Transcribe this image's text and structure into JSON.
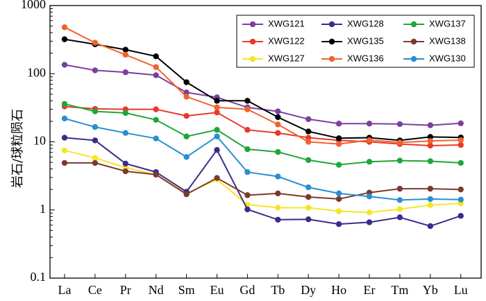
{
  "chart_data": {
    "type": "line",
    "yscale": "log",
    "ylim": [
      0.1,
      1000
    ],
    "ylabel": "岩石/球粒陨石",
    "xlabel": "",
    "categories": [
      "La",
      "Ce",
      "Pr",
      "Nd",
      "Sm",
      "Eu",
      "Gd",
      "Tb",
      "Dy",
      "Ho",
      "Er",
      "Tm",
      "Yb",
      "Lu"
    ],
    "yticks": [
      "0.1",
      "1",
      "10",
      "100",
      "1000"
    ],
    "legend_position": "top-right",
    "series": [
      {
        "name": "XWG121",
        "color": "#7B3F9E",
        "values": [
          135,
          112,
          105,
          95,
          53,
          45,
          32,
          28,
          21.5,
          18.5,
          18.5,
          18.2,
          17.5,
          18.7
        ]
      },
      {
        "name": "XWG122",
        "color": "#E8392B",
        "values": [
          33,
          30.5,
          30,
          30,
          24,
          27,
          15,
          13.5,
          11.5,
          10.5,
          10,
          9.3,
          8.8,
          9
        ]
      },
      {
        "name": "XWG127",
        "color": "#F5E52A",
        "values": [
          7.5,
          5.8,
          4.2,
          3.3,
          1.75,
          2.8,
          1.2,
          1.08,
          1.08,
          0.96,
          0.92,
          1.03,
          1.18,
          1.25
        ]
      },
      {
        "name": "XWG128",
        "color": "#3D2A8C",
        "values": [
          11.5,
          10.5,
          4.8,
          3.6,
          1.85,
          7.6,
          1.02,
          0.72,
          0.73,
          0.62,
          0.66,
          0.78,
          0.58,
          0.82
        ]
      },
      {
        "name": "XWG135",
        "color": "#000000",
        "values": [
          320,
          270,
          225,
          180,
          75,
          40,
          40,
          23,
          14.2,
          11.3,
          11.5,
          10.5,
          11.8,
          11.6
        ]
      },
      {
        "name": "XWG136",
        "color": "#F2622E",
        "values": [
          480,
          285,
          190,
          125,
          46,
          32,
          30,
          18,
          10,
          9.3,
          10.6,
          9.8,
          10.3,
          10.6
        ]
      },
      {
        "name": "XWG137",
        "color": "#1DA73A",
        "values": [
          36,
          28,
          26.5,
          21,
          12,
          15,
          7.8,
          7.1,
          5.4,
          4.6,
          5.1,
          5.3,
          5.2,
          4.9
        ]
      },
      {
        "name": "XWG138",
        "color": "#7A3B2C",
        "values": [
          4.9,
          4.9,
          3.7,
          3.3,
          1.7,
          2.95,
          1.65,
          1.75,
          1.55,
          1.45,
          1.8,
          2.05,
          2.05,
          2
        ]
      },
      {
        "name": "XWG130",
        "color": "#2A8FD0",
        "values": [
          22,
          16.5,
          13.5,
          11.2,
          6,
          12,
          3.6,
          3.1,
          2.15,
          1.75,
          1.58,
          1.4,
          1.45,
          1.42
        ]
      }
    ]
  }
}
